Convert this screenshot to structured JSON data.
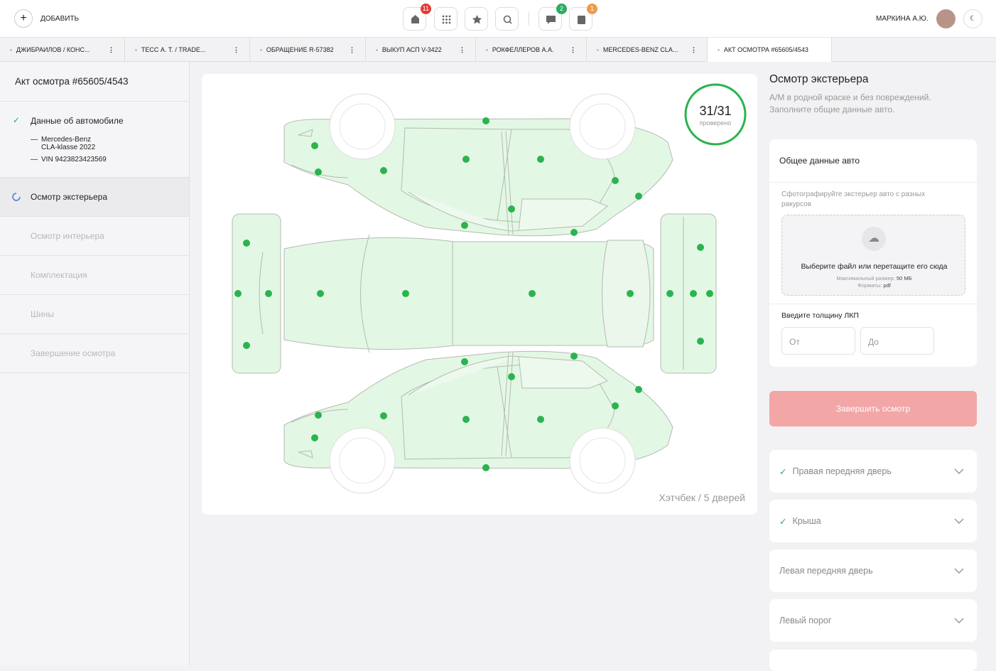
{
  "topbar": {
    "add": "ДОБАВИТЬ",
    "badges": [
      "11",
      "2",
      "1"
    ],
    "user": "МАРКИНА А.Ю."
  },
  "tabs": [
    "ДЖИБРАИЛОВ / КОНС...",
    "ТЕСС А. Т. / TRADE...",
    "ОБРАЩЕНИЕ R-57382",
    "ВЫКУП АСП V-3422",
    "РОКФЕЛЛЕРОВ А.А.",
    "MERCEDES-BENZ CLA...",
    "АКТ ОСМОТРА #65605/4543"
  ],
  "sidebar": {
    "title": "Акт осмотра #65605/4543",
    "steps": [
      {
        "label": "Данные об автомобиле",
        "details": [
          "Mercedes-Benz CLA-klasse 2022",
          "VIN 9423823423569"
        ]
      },
      {
        "label": "Осмотр экстерьера"
      },
      {
        "label": "Осмотр интерьера"
      },
      {
        "label": "Комплектация"
      },
      {
        "label": "Шины"
      },
      {
        "label": "Завершение осмотра"
      }
    ]
  },
  "diagram": {
    "counter": "31/31",
    "counter_label": "проверено",
    "body_type": "Хэтчбек / 5 дверей"
  },
  "panel": {
    "title": "Осмотр экстерьера",
    "subtitle": "А/М в родной краске и без повреждений. Заполните общие данные авто.",
    "card_title": "Общее данные авто",
    "photo_hint": "Сфотографируйте экстерьер авто с разных ракурсов",
    "upload": "Выберите файл или перетащите его сюда",
    "max_size_label": "Максимальный размер:",
    "max_size": "50 МБ",
    "formats_label": "Форматы:",
    "formats": "pdf",
    "thickness_label": "Введите толщину ЛКП",
    "from": "От",
    "to": "До",
    "finish": "Завершить осмотр",
    "sections": [
      {
        "label": "Правая передняя дверь",
        "checked": true
      },
      {
        "label": "Крыша",
        "checked": true
      },
      {
        "label": "Левая передняя дверь",
        "checked": false
      },
      {
        "label": "Левый порог",
        "checked": false
      }
    ]
  }
}
